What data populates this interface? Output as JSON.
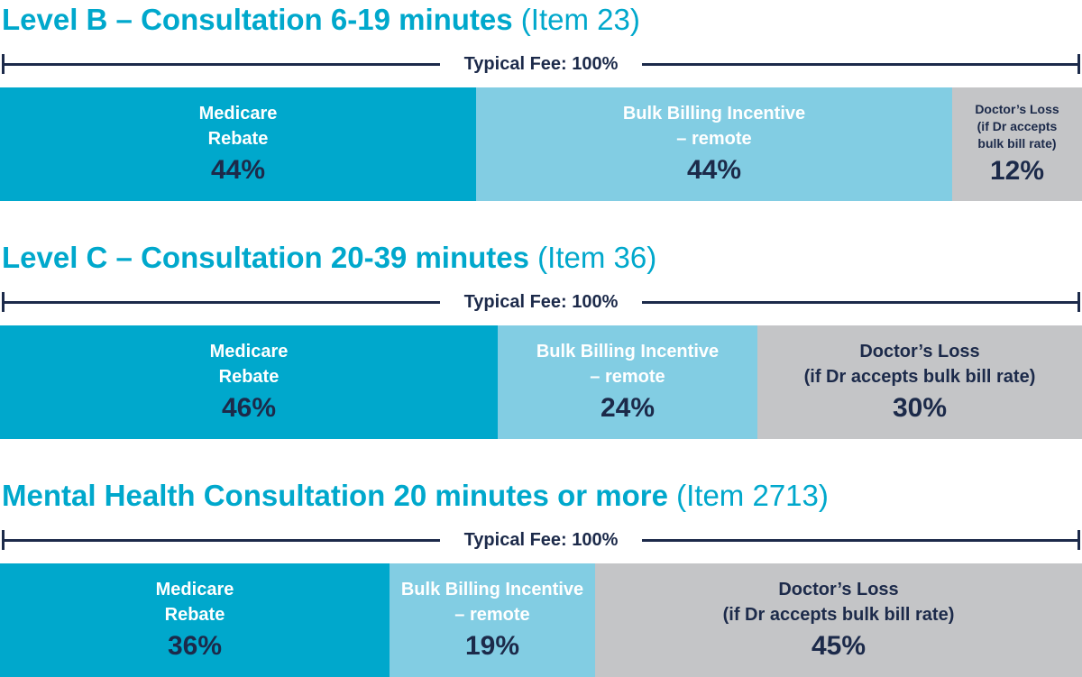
{
  "chart_data": {
    "type": "bar",
    "stacked": true,
    "orientation": "horizontal",
    "colors": {
      "medicare_rebate": "#00A8CC",
      "bulk_billing_incentive": "#82CDE3",
      "doctors_loss": "#C4C5C7",
      "title": "#00A8CC",
      "dark": "#1C2A4A"
    },
    "charts": [
      {
        "title": "Level B – Consultation 6-19 minutes",
        "item": "(Item 23)",
        "fee_label": "Typical Fee: 100%",
        "segments": [
          {
            "key": "medicare_rebate",
            "label_lines": [
              "Medicare",
              "Rebate"
            ],
            "value": 44,
            "value_label": "44%"
          },
          {
            "key": "bulk_billing_incentive",
            "label_lines": [
              "Bulk Billing Incentive",
              "– remote"
            ],
            "value": 44,
            "value_label": "44%"
          },
          {
            "key": "doctors_loss",
            "label_lines": [
              "Doctor’s Loss",
              "(if Dr accepts",
              "bulk bill rate)"
            ],
            "value": 12,
            "value_label": "12%"
          }
        ]
      },
      {
        "title": "Level C – Consultation 20-39 minutes",
        "item": "(Item 36)",
        "fee_label": "Typical Fee: 100%",
        "segments": [
          {
            "key": "medicare_rebate",
            "label_lines": [
              "Medicare",
              "Rebate"
            ],
            "value": 46,
            "value_label": "46%"
          },
          {
            "key": "bulk_billing_incentive",
            "label_lines": [
              "Bulk Billing Incentive",
              "– remote"
            ],
            "value": 24,
            "value_label": "24%"
          },
          {
            "key": "doctors_loss",
            "label_lines": [
              "Doctor’s Loss",
              "(if Dr accepts bulk bill rate)"
            ],
            "value": 30,
            "value_label": "30%"
          }
        ]
      },
      {
        "title": "Mental Health Consultation 20 minutes or more",
        "item": "(Item 2713)",
        "fee_label": "Typical Fee: 100%",
        "segments": [
          {
            "key": "medicare_rebate",
            "label_lines": [
              "Medicare",
              "Rebate"
            ],
            "value": 36,
            "value_label": "36%"
          },
          {
            "key": "bulk_billing_incentive",
            "label_lines": [
              "Bulk Billing Incentive",
              "– remote"
            ],
            "value": 19,
            "value_label": "19%"
          },
          {
            "key": "doctors_loss",
            "label_lines": [
              "Doctor’s Loss",
              "(if Dr accepts bulk bill rate)"
            ],
            "value": 45,
            "value_label": "45%"
          }
        ]
      }
    ]
  }
}
